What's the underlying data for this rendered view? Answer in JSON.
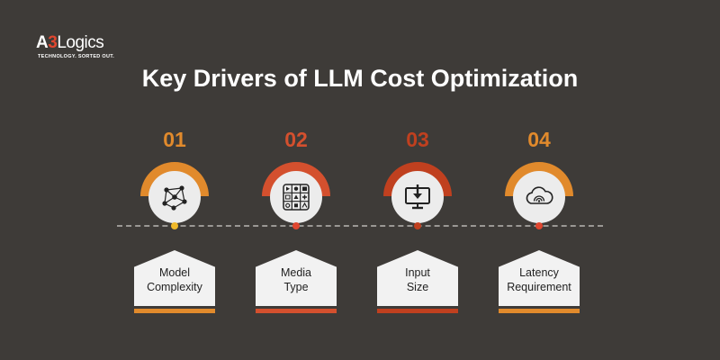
{
  "logo": {
    "part1": "A",
    "part2": "3",
    "part3": "Logics",
    "tagline": "TECHNOLOGY. SORTED OUT."
  },
  "title": "Key Drivers of LLM Cost Optimization",
  "steps": [
    {
      "number": "01",
      "line1": "Model",
      "line2": "Complexity",
      "color": "#e18a2c",
      "icon": "network-nodes-icon"
    },
    {
      "number": "02",
      "line1": "Media",
      "line2": "Type",
      "color": "#d4502e",
      "icon": "media-grid-icon"
    },
    {
      "number": "03",
      "line1": "Input",
      "line2": "Size",
      "color": "#c0401f",
      "icon": "monitor-download-icon"
    },
    {
      "number": "04",
      "line1": "Latency",
      "line2": "Requirement",
      "color": "#e18a2c",
      "icon": "cloud-speed-icon"
    }
  ],
  "colors": {
    "background": "#3e3b38",
    "dot_yellow": "#f0b92a",
    "dot_red": "#e0462f"
  }
}
